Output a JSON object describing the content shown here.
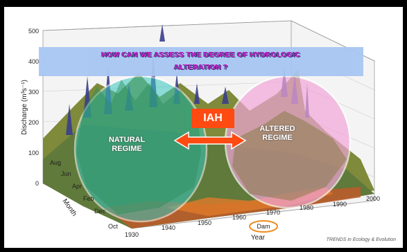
{
  "banner": {
    "line1": "HOW CAN WE ASSESS THE DEGREE OF HYDROLOGIC",
    "line2": "ALTERATION ?"
  },
  "badge": {
    "label": "IAH"
  },
  "regimes": {
    "natural": {
      "line1": "NATURAL",
      "line2": "REGIME"
    },
    "altered": {
      "line1": "ALTERED",
      "line2": "REGIME"
    }
  },
  "axes": {
    "discharge_label": "Discharge (m³s⁻¹)",
    "discharge_ticks": [
      "500",
      "400",
      "300",
      "200",
      "100",
      "0"
    ],
    "month_label": "Month",
    "month_ticks": [
      "Aug",
      "Jun",
      "Apr",
      "Feb",
      "Dec",
      "Oct"
    ],
    "year_label": "Year",
    "year_ticks": [
      "1930",
      "1940",
      "1950",
      "1960",
      "1970",
      "1980",
      "1990",
      "2000"
    ],
    "dam_label": "Dam"
  },
  "credit": "TRENDS in Ecology & Evolution",
  "colors": {
    "banner_bg": "#a8c6f2",
    "banner_text": "#d81ad8",
    "badge_bg": "#ff4a12",
    "natural_circle": "#38c8c0",
    "altered_circle": "#f2a6d8",
    "dam_circle": "#f08a1e"
  }
}
